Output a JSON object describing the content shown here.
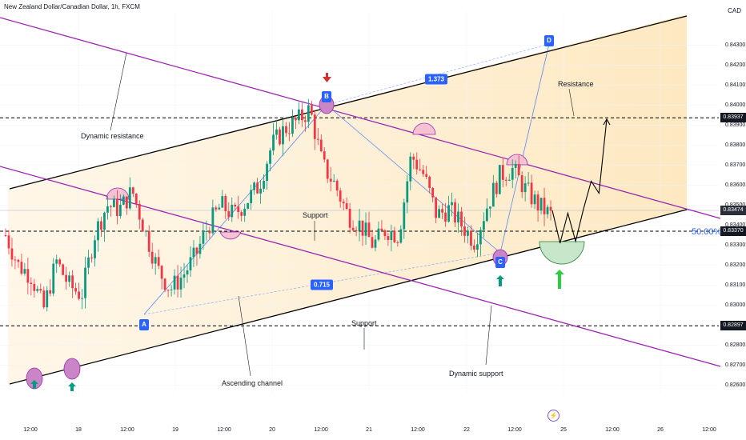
{
  "header": {
    "title": "New Zealand Dollar/Canadian Dollar, 1h, FXCM",
    "currency": "CAD"
  },
  "chart_data": {
    "type": "candlestick",
    "symbol": "NZDCAD",
    "timeframe": "1h",
    "ylim": [
      0.8255,
      0.8447
    ],
    "y_ticks": [
      "0.84300",
      "0.84200",
      "0.84100",
      "0.84000",
      "0.83900",
      "0.83800",
      "0.83700",
      "0.83600",
      "0.83500",
      "0.83400",
      "0.83300",
      "0.83200",
      "0.83100",
      "0.83000",
      "0.82900",
      "0.82800",
      "0.82700",
      "0.82600"
    ],
    "x_ticks": [
      "12:00",
      "18",
      "12:00",
      "19",
      "12:00",
      "20",
      "12:00",
      "21",
      "12:00",
      "22",
      "12:00",
      "25",
      "12:00",
      "26",
      "12:00"
    ],
    "price_badges": [
      {
        "label": "0.83937",
        "value": 0.83937
      },
      {
        "label": "0.83474",
        "value": 0.83474
      },
      {
        "label": "0.83370",
        "value": 0.8337
      },
      {
        "label": "0.82897",
        "value": 0.82897
      }
    ],
    "candles_ohlc_anchor_path": [
      0.8335,
      0.832,
      0.8315,
      0.8298,
      0.8322,
      0.831,
      0.8305,
      0.8335,
      0.835,
      0.8348,
      0.8357,
      0.8337,
      0.8318,
      0.8308,
      0.8315,
      0.8325,
      0.834,
      0.835,
      0.8345,
      0.8352,
      0.836,
      0.838,
      0.8388,
      0.8392,
      0.8398,
      0.837,
      0.836,
      0.8345,
      0.834,
      0.833,
      0.8338,
      0.8335,
      0.8375,
      0.8365,
      0.8345,
      0.8348,
      0.834,
      0.8332,
      0.835,
      0.8365,
      0.8368,
      0.8358,
      0.835,
      0.8345
    ],
    "projection_path": [
      0.83474,
      0.8331,
      0.8346,
      0.8332,
      0.8348,
      0.8362,
      0.8356,
      0.8393
    ],
    "horizontal_levels": [
      0.83937,
      0.8337,
      0.82897
    ],
    "fib_level": {
      "label": "50.00%",
      "value": 0.8337
    },
    "pattern_points": [
      "A",
      "B",
      "C",
      "D"
    ],
    "pattern_ratios": [
      "1.373",
      "0.715"
    ],
    "annotations": [
      "Dynamic resistance",
      "Resistance",
      "Support",
      "Support",
      "Ascending channel",
      "Dynamic support"
    ]
  },
  "colors": {
    "bull": "#089981",
    "bear": "#f23645",
    "channel": "#9c27b0",
    "fill": "#fde9c2",
    "blue": "#2962ff"
  },
  "icons": [
    "arrow-down-icon",
    "arrow-up-icon",
    "lightning-icon"
  ]
}
